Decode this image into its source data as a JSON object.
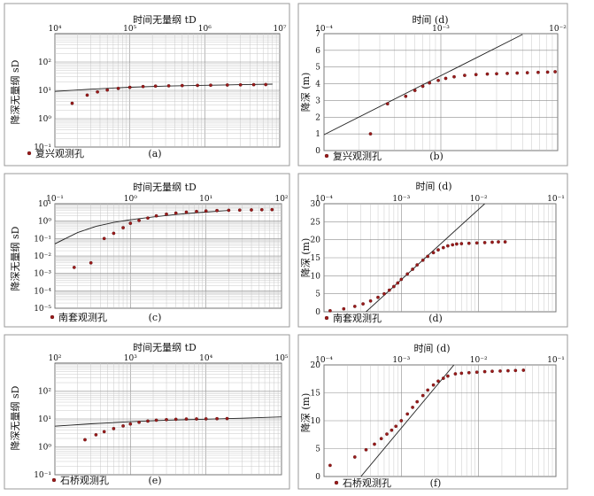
{
  "chart_data": [
    {
      "id": "a",
      "type": "scatter",
      "scale": "loglog",
      "panel_label": "(a)",
      "xlabel": "时间无量纲 tD",
      "ylabel": "降深无量纲 sD",
      "xlim": [
        10000,
        10000000
      ],
      "ylim": [
        0.1,
        1000
      ],
      "x_ticks": [
        {
          "v": 10000,
          "label": "10⁴"
        },
        {
          "v": 100000,
          "label": "10⁵"
        },
        {
          "v": 1000000,
          "label": "10⁶"
        },
        {
          "v": 10000000,
          "label": "10⁷"
        }
      ],
      "y_ticks": [
        {
          "v": 0.1,
          "label": "10⁻¹"
        },
        {
          "v": 1,
          "label": "10⁰"
        },
        {
          "v": 10,
          "label": "10¹"
        },
        {
          "v": 100,
          "label": "10²"
        }
      ],
      "legend": "复兴观测孔",
      "series": [
        {
          "type": "scatter",
          "x": [
            17000,
            27000,
            37000,
            50000,
            70000,
            100000,
            150000,
            220000,
            330000,
            500000,
            800000,
            1200000,
            2000000,
            3000000,
            4500000,
            6500000
          ],
          "y": [
            3.5,
            6.8,
            8.8,
            10.3,
            11.7,
            12.8,
            13.6,
            14.1,
            14.4,
            14.7,
            15.0,
            15.2,
            15.4,
            15.6,
            15.8,
            16.0
          ]
        }
      ],
      "curves": [
        {
          "x": [
            10000,
            30000,
            100000,
            300000,
            1000000,
            3000000,
            8000000
          ],
          "y": [
            9.2,
            11.0,
            12.9,
            14.1,
            15.1,
            15.9,
            16.6
          ]
        }
      ]
    },
    {
      "id": "b",
      "type": "scatter",
      "scale": "semilogx",
      "panel_label": "(b)",
      "xlabel": "时间 (d)",
      "ylabel": "降深 (m)",
      "xlim": [
        0.0001,
        0.01
      ],
      "ylim": [
        0,
        7
      ],
      "x_ticks": [
        {
          "v": 0.0001,
          "label": "10⁻⁴"
        },
        {
          "v": 0.001,
          "label": "10⁻³"
        },
        {
          "v": 0.01,
          "label": "10⁻²"
        }
      ],
      "y_ticks": [
        {
          "v": 0,
          "label": "0"
        },
        {
          "v": 1,
          "label": "1"
        },
        {
          "v": 2,
          "label": "2"
        },
        {
          "v": 3,
          "label": "3"
        },
        {
          "v": 4,
          "label": "4"
        },
        {
          "v": 5,
          "label": "5"
        },
        {
          "v": 6,
          "label": "6"
        },
        {
          "v": 7,
          "label": "7"
        }
      ],
      "legend": "复兴观测孔",
      "series": [
        {
          "type": "scatter",
          "x": [
            0.00025,
            0.00035,
            0.0005,
            0.0006,
            0.0007,
            0.0008,
            0.00095,
            0.0011,
            0.0013,
            0.0016,
            0.002,
            0.0025,
            0.003,
            0.0037,
            0.0045,
            0.0055,
            0.0068,
            0.0082,
            0.0095
          ],
          "y": [
            1.0,
            2.8,
            3.25,
            3.6,
            3.85,
            4.05,
            4.2,
            4.32,
            4.42,
            4.5,
            4.55,
            4.58,
            4.6,
            4.62,
            4.64,
            4.66,
            4.68,
            4.7,
            4.72
          ]
        }
      ],
      "curves": [
        {
          "x": [
            0.0001,
            0.005
          ],
          "y": [
            0.95,
            6.95
          ]
        }
      ]
    },
    {
      "id": "c",
      "type": "scatter",
      "scale": "loglog",
      "panel_label": "(c)",
      "xlabel": "时间无量纲 tD",
      "ylabel": "降深无量纲 sD",
      "xlim": [
        0.1,
        100
      ],
      "ylim": [
        1e-05,
        10
      ],
      "x_ticks": [
        {
          "v": 0.1,
          "label": "10⁻¹"
        },
        {
          "v": 1,
          "label": "10⁰"
        },
        {
          "v": 10,
          "label": "10¹"
        },
        {
          "v": 100,
          "label": "10²"
        }
      ],
      "y_ticks": [
        {
          "v": 1e-05,
          "label": "10⁻⁵"
        },
        {
          "v": 0.0001,
          "label": "10⁻⁴"
        },
        {
          "v": 0.001,
          "label": "10⁻³"
        },
        {
          "v": 0.01,
          "label": "10⁻²"
        },
        {
          "v": 0.1,
          "label": "10⁻¹"
        },
        {
          "v": 1,
          "label": "10⁰"
        },
        {
          "v": 10,
          "label": "10¹"
        }
      ],
      "legend": "南套观测孔",
      "series": [
        {
          "type": "scatter",
          "x": [
            0.18,
            0.3,
            0.45,
            0.6,
            0.8,
            1.0,
            1.3,
            1.7,
            2.2,
            3.0,
            4.0,
            5.5,
            7.5,
            10,
            14,
            20,
            28,
            40,
            55,
            75
          ],
          "y": [
            0.0022,
            0.004,
            0.1,
            0.2,
            0.42,
            0.75,
            1.1,
            1.5,
            2.0,
            2.5,
            2.9,
            3.3,
            3.6,
            3.85,
            4.05,
            4.2,
            4.3,
            4.4,
            4.5,
            4.55
          ]
        }
      ],
      "curves": [
        {
          "x": [
            0.1,
            0.2,
            0.35,
            0.6,
            1.0,
            2.0,
            4.0,
            8.0,
            20
          ],
          "y": [
            0.05,
            0.22,
            0.5,
            0.85,
            1.2,
            1.75,
            2.4,
            3.1,
            4.1
          ]
        }
      ]
    },
    {
      "id": "d",
      "type": "scatter",
      "scale": "semilogx",
      "panel_label": "(d)",
      "xlabel": "时间 (d)",
      "ylabel": "降深 (m)",
      "xlim": [
        0.0001,
        0.1
      ],
      "ylim": [
        0,
        30
      ],
      "x_ticks": [
        {
          "v": 0.0001,
          "label": "10⁻⁴"
        },
        {
          "v": 0.001,
          "label": "10⁻³"
        },
        {
          "v": 0.01,
          "label": "10⁻²"
        },
        {
          "v": 0.1,
          "label": "10⁻¹"
        }
      ],
      "y_ticks": [
        {
          "v": 0,
          "label": "0"
        },
        {
          "v": 5,
          "label": "5"
        },
        {
          "v": 10,
          "label": "10"
        },
        {
          "v": 15,
          "label": "15"
        },
        {
          "v": 20,
          "label": "20"
        },
        {
          "v": 25,
          "label": "25"
        },
        {
          "v": 30,
          "label": "30"
        }
      ],
      "legend": "南套观测孔",
      "series": [
        {
          "type": "scatter",
          "x": [
            0.00012,
            0.00018,
            0.00025,
            0.00032,
            0.0004,
            0.0005,
            0.0006,
            0.0007,
            0.0008,
            0.0009,
            0.001,
            0.0012,
            0.0014,
            0.0016,
            0.0019,
            0.0022,
            0.0026,
            0.003,
            0.0035,
            0.004,
            0.0046,
            0.0052,
            0.006,
            0.0075,
            0.0095,
            0.012,
            0.015,
            0.018,
            0.022
          ],
          "y": [
            0.3,
            0.8,
            1.5,
            2.2,
            3.0,
            4.0,
            5.0,
            6.0,
            7.0,
            8.0,
            9.0,
            10.5,
            11.8,
            13.0,
            14.3,
            15.4,
            16.4,
            17.2,
            17.8,
            18.3,
            18.6,
            18.8,
            18.9,
            19.0,
            19.1,
            19.2,
            19.3,
            19.4,
            19.4
          ]
        }
      ],
      "curves": [
        {
          "x": [
            0.00035,
            0.012
          ],
          "y": [
            0,
            30
          ]
        }
      ]
    },
    {
      "id": "e",
      "type": "scatter",
      "scale": "loglog",
      "panel_label": "(e)",
      "xlabel": "时间无量纲 tD",
      "ylabel": "降深无量纲 sD",
      "xlim": [
        100,
        100000
      ],
      "ylim": [
        0.1,
        1000
      ],
      "x_ticks": [
        {
          "v": 100,
          "label": "10²"
        },
        {
          "v": 1000,
          "label": "10³"
        },
        {
          "v": 10000,
          "label": "10⁴"
        },
        {
          "v": 100000,
          "label": "10⁵"
        }
      ],
      "y_ticks": [
        {
          "v": 0.1,
          "label": "10⁻¹"
        },
        {
          "v": 1,
          "label": "10⁰"
        },
        {
          "v": 10,
          "label": "10¹"
        },
        {
          "v": 100,
          "label": "10²"
        }
      ],
      "legend": "石桥观测孔",
      "series": [
        {
          "type": "scatter",
          "x": [
            250,
            350,
            450,
            600,
            800,
            1000,
            1300,
            1700,
            2200,
            3000,
            4000,
            5500,
            7500,
            10000,
            14000,
            19000
          ],
          "y": [
            1.8,
            2.7,
            3.5,
            4.5,
            5.6,
            6.6,
            7.6,
            8.4,
            9.0,
            9.4,
            9.7,
            9.9,
            10.0,
            10.1,
            10.2,
            10.3
          ]
        }
      ],
      "curves": [
        {
          "x": [
            100,
            300,
            1000,
            3000,
            10000,
            30000,
            100000
          ],
          "y": [
            5.5,
            6.7,
            8.0,
            9.0,
            9.8,
            10.6,
            11.8
          ]
        }
      ]
    },
    {
      "id": "f",
      "type": "scatter",
      "scale": "semilogx",
      "panel_label": "(f)",
      "xlabel": "时间 (d)",
      "ylabel": "降深 (m)",
      "xlim": [
        0.0001,
        0.1
      ],
      "ylim": [
        0,
        20
      ],
      "x_ticks": [
        {
          "v": 0.0001,
          "label": "10⁻⁴"
        },
        {
          "v": 0.001,
          "label": "10⁻³"
        },
        {
          "v": 0.01,
          "label": "10⁻²"
        },
        {
          "v": 0.1,
          "label": "10⁻¹"
        }
      ],
      "y_ticks": [
        {
          "v": 0,
          "label": "0"
        },
        {
          "v": 5,
          "label": "5"
        },
        {
          "v": 10,
          "label": "10"
        },
        {
          "v": 15,
          "label": "15"
        },
        {
          "v": 20,
          "label": "20"
        }
      ],
      "legend": "石桥观测孔",
      "series": [
        {
          "type": "scatter",
          "x": [
            0.00012,
            0.00025,
            0.00035,
            0.00045,
            0.00055,
            0.00065,
            0.00075,
            0.00085,
            0.001,
            0.0012,
            0.0014,
            0.0016,
            0.0019,
            0.0022,
            0.0026,
            0.003,
            0.0035,
            0.004,
            0.005,
            0.006,
            0.0075,
            0.0095,
            0.012,
            0.015,
            0.019,
            0.024,
            0.03,
            0.038
          ],
          "y": [
            2.0,
            3.5,
            4.8,
            5.8,
            6.8,
            7.6,
            8.3,
            9.0,
            10.0,
            11.2,
            12.4,
            13.4,
            14.5,
            15.5,
            16.4,
            17.1,
            17.6,
            18.0,
            18.4,
            18.5,
            18.6,
            18.7,
            18.8,
            18.85,
            18.9,
            18.95,
            19.0,
            19.05
          ]
        }
      ],
      "curves": [
        {
          "x": [
            0.0003,
            0.0048
          ],
          "y": [
            0,
            20
          ]
        }
      ]
    }
  ]
}
